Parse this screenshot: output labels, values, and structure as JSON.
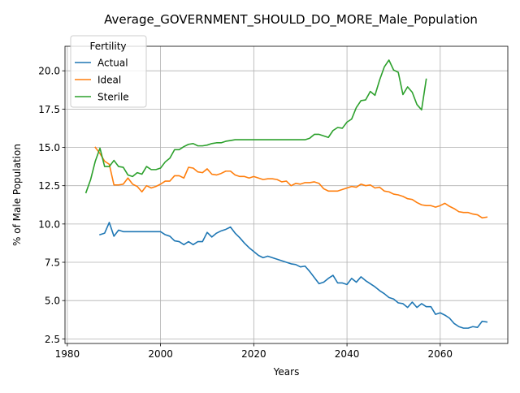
{
  "chart_data": {
    "type": "line",
    "title": "Average_GOVERNMENT_SHOULD_DO_MORE_Male_Population",
    "xlabel": "Years",
    "ylabel": "% of Male Population",
    "xlim": [
      1979.5,
      2074.5
    ],
    "ylim": [
      2.2,
      21.6
    ],
    "xticks": [
      1980,
      2000,
      2020,
      2040,
      2060
    ],
    "yticks": [
      2.5,
      5.0,
      7.5,
      10.0,
      12.5,
      15.0,
      17.5,
      20.0
    ],
    "xtick_labels": [
      "1980",
      "2000",
      "2020",
      "2040",
      "2060"
    ],
    "ytick_labels": [
      "2.5",
      "5.0",
      "7.5",
      "10.0",
      "12.5",
      "15.0",
      "17.5",
      "20.0"
    ],
    "grid": true,
    "legend": {
      "title": "Fertility",
      "placement": "top-left"
    },
    "series": [
      {
        "name": "Actual",
        "color": "#1f77b4",
        "x": [
          1987,
          1988,
          1989,
          1990,
          1991,
          1992,
          1993,
          1994,
          1995,
          1996,
          1997,
          1998,
          1999,
          2000,
          2001,
          2002,
          2003,
          2004,
          2005,
          2006,
          2007,
          2008,
          2009,
          2010,
          2011,
          2012,
          2013,
          2014,
          2015,
          2016,
          2017,
          2018,
          2019,
          2020,
          2021,
          2022,
          2023,
          2024,
          2025,
          2026,
          2027,
          2028,
          2029,
          2030,
          2031,
          2032,
          2033,
          2034,
          2035,
          2036,
          2037,
          2038,
          2039,
          2040,
          2041,
          2042,
          2043,
          2044,
          2045,
          2046,
          2047,
          2048,
          2049,
          2050,
          2051,
          2052,
          2053,
          2054,
          2055,
          2056,
          2057,
          2058,
          2059,
          2060,
          2061,
          2062,
          2063,
          2064,
          2065,
          2066,
          2067,
          2068,
          2069,
          2070
        ],
        "values": [
          9.3,
          9.4,
          10.1,
          9.2,
          9.6,
          9.5,
          9.5,
          9.5,
          9.5,
          9.5,
          9.5,
          9.5,
          9.5,
          9.5,
          9.3,
          9.2,
          8.9,
          8.85,
          8.65,
          8.85,
          8.65,
          8.85,
          8.85,
          9.45,
          9.15,
          9.4,
          9.55,
          9.65,
          9.8,
          9.4,
          9.1,
          8.75,
          8.45,
          8.2,
          7.95,
          7.8,
          7.9,
          7.8,
          7.7,
          7.6,
          7.5,
          7.4,
          7.35,
          7.2,
          7.25,
          6.9,
          6.5,
          6.1,
          6.2,
          6.45,
          6.65,
          6.15,
          6.15,
          6.05,
          6.45,
          6.2,
          6.55,
          6.3,
          6.1,
          5.9,
          5.65,
          5.45,
          5.2,
          5.1,
          4.85,
          4.8,
          4.55,
          4.9,
          4.55,
          4.8,
          4.6,
          4.6,
          4.1,
          4.2,
          4.05,
          3.85,
          3.5,
          3.3,
          3.2,
          3.2,
          3.3,
          3.25,
          3.65,
          3.6
        ]
      },
      {
        "name": "Ideal",
        "color": "#ff7f0e",
        "x": [
          1986,
          1987,
          1988,
          1989,
          1990,
          1991,
          1992,
          1993,
          1994,
          1995,
          1996,
          1997,
          1998,
          1999,
          2000,
          2001,
          2002,
          2003,
          2004,
          2005,
          2006,
          2007,
          2008,
          2009,
          2010,
          2011,
          2012,
          2013,
          2014,
          2015,
          2016,
          2017,
          2018,
          2019,
          2020,
          2021,
          2022,
          2023,
          2024,
          2025,
          2026,
          2027,
          2028,
          2029,
          2030,
          2031,
          2032,
          2033,
          2034,
          2035,
          2036,
          2037,
          2038,
          2039,
          2040,
          2041,
          2042,
          2043,
          2044,
          2045,
          2046,
          2047,
          2048,
          2049,
          2050,
          2051,
          2052,
          2053,
          2054,
          2055,
          2056,
          2057,
          2058,
          2059,
          2060,
          2061,
          2062,
          2063,
          2064,
          2065,
          2066,
          2067,
          2068,
          2069,
          2070
        ],
        "values": [
          15.0,
          14.6,
          14.1,
          13.9,
          12.55,
          12.55,
          12.6,
          13.0,
          12.6,
          12.45,
          12.1,
          12.5,
          12.35,
          12.45,
          12.6,
          12.8,
          12.8,
          13.15,
          13.15,
          13.0,
          13.7,
          13.65,
          13.4,
          13.35,
          13.6,
          13.25,
          13.2,
          13.3,
          13.45,
          13.45,
          13.2,
          13.1,
          13.1,
          13.0,
          13.1,
          13.0,
          12.9,
          12.95,
          12.95,
          12.9,
          12.75,
          12.8,
          12.5,
          12.65,
          12.6,
          12.7,
          12.7,
          12.75,
          12.65,
          12.3,
          12.15,
          12.15,
          12.15,
          12.25,
          12.35,
          12.45,
          12.4,
          12.6,
          12.5,
          12.55,
          12.35,
          12.4,
          12.15,
          12.1,
          11.95,
          11.9,
          11.8,
          11.65,
          11.6,
          11.4,
          11.25,
          11.2,
          11.2,
          11.1,
          11.2,
          11.35,
          11.15,
          11.0,
          10.8,
          10.75,
          10.75,
          10.65,
          10.6,
          10.4,
          10.45
        ]
      },
      {
        "name": "Sterile",
        "color": "#2ca02c",
        "x": [
          1984,
          1985,
          1986,
          1987,
          1988,
          1989,
          1990,
          1991,
          1992,
          1993,
          1994,
          1995,
          1996,
          1997,
          1998,
          1999,
          2000,
          2001,
          2002,
          2003,
          2004,
          2005,
          2006,
          2007,
          2008,
          2009,
          2010,
          2011,
          2012,
          2013,
          2014,
          2015,
          2016,
          2017,
          2018,
          2019,
          2020,
          2021,
          2022,
          2023,
          2024,
          2025,
          2026,
          2027,
          2028,
          2029,
          2030,
          2031,
          2032,
          2033,
          2034,
          2035,
          2036,
          2037,
          2038,
          2039,
          2040,
          2041,
          2042,
          2043,
          2044,
          2045,
          2046,
          2047,
          2048,
          2049,
          2050,
          2051,
          2052,
          2053,
          2054,
          2055,
          2056,
          2057
        ],
        "values": [
          12.05,
          12.9,
          14.1,
          14.95,
          13.75,
          13.75,
          14.15,
          13.75,
          13.7,
          13.2,
          13.1,
          13.35,
          13.25,
          13.75,
          13.55,
          13.55,
          13.65,
          14.05,
          14.3,
          14.85,
          14.85,
          15.05,
          15.2,
          15.25,
          15.1,
          15.1,
          15.15,
          15.25,
          15.3,
          15.3,
          15.4,
          15.45,
          15.5,
          15.5,
          15.5,
          15.5,
          15.5,
          15.5,
          15.5,
          15.5,
          15.5,
          15.5,
          15.5,
          15.5,
          15.5,
          15.5,
          15.5,
          15.5,
          15.6,
          15.85,
          15.85,
          15.75,
          15.65,
          16.1,
          16.3,
          16.25,
          16.65,
          16.85,
          17.6,
          18.05,
          18.1,
          18.65,
          18.4,
          19.4,
          20.25,
          20.7,
          20.05,
          19.9,
          18.45,
          18.95,
          18.6,
          17.8,
          17.45,
          19.45
        ]
      }
    ]
  }
}
